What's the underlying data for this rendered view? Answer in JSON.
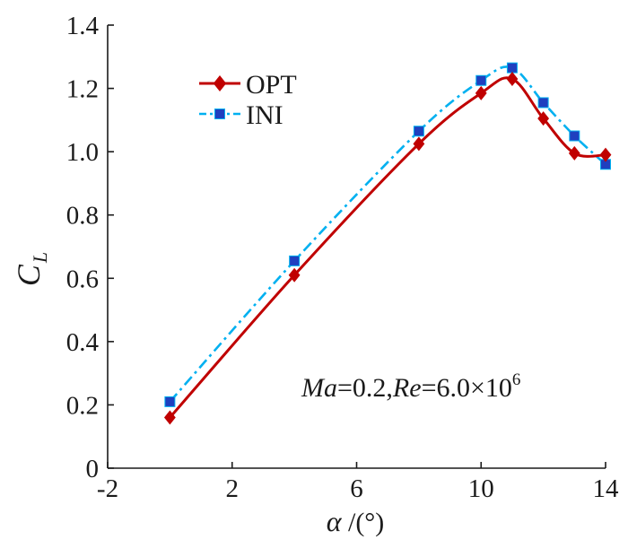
{
  "chart_data": {
    "type": "line",
    "title": "",
    "xlabel": "α /(°)",
    "xlabel_symbol": "α",
    "xlabel_unit": " /(°)",
    "ylabel": "C_L",
    "ylabel_main": "C",
    "ylabel_sub": "L",
    "xlim": [
      -2,
      14
    ],
    "ylim": [
      0,
      1.4
    ],
    "xticks": [
      -2,
      2,
      6,
      10,
      14
    ],
    "xtick_labels": [
      "-2",
      "2",
      "6",
      "10",
      "14"
    ],
    "yticks": [
      0,
      0.2,
      0.4,
      0.6,
      0.8,
      1.0,
      1.2,
      1.4
    ],
    "ytick_labels": [
      "0",
      "0.2",
      "0.4",
      "0.6",
      "0.8",
      "1.0",
      "1.2",
      "1.4"
    ],
    "legend_position": "top-left",
    "series": [
      {
        "name": "OPT",
        "color": "#c00000",
        "line_style": "solid",
        "marker": "diamond",
        "x": [
          0,
          4,
          8,
          10,
          11,
          12,
          13,
          14
        ],
        "values": [
          0.16,
          0.61,
          1.025,
          1.185,
          1.23,
          1.105,
          0.995,
          0.99
        ]
      },
      {
        "name": "INI",
        "color": "#00b0f0",
        "marker_color": "#1f3fbf",
        "line_style": "dash-dot",
        "marker": "square",
        "x": [
          0,
          4,
          8,
          10,
          11,
          12,
          13,
          14
        ],
        "values": [
          0.21,
          0.655,
          1.065,
          1.225,
          1.265,
          1.155,
          1.05,
          0.96
        ]
      }
    ],
    "annotation": {
      "ma_label": "Ma",
      "ma_value": "=0.2,",
      "re_label": "Re",
      "re_value": "=6.0×10",
      "re_exponent": "6"
    }
  }
}
